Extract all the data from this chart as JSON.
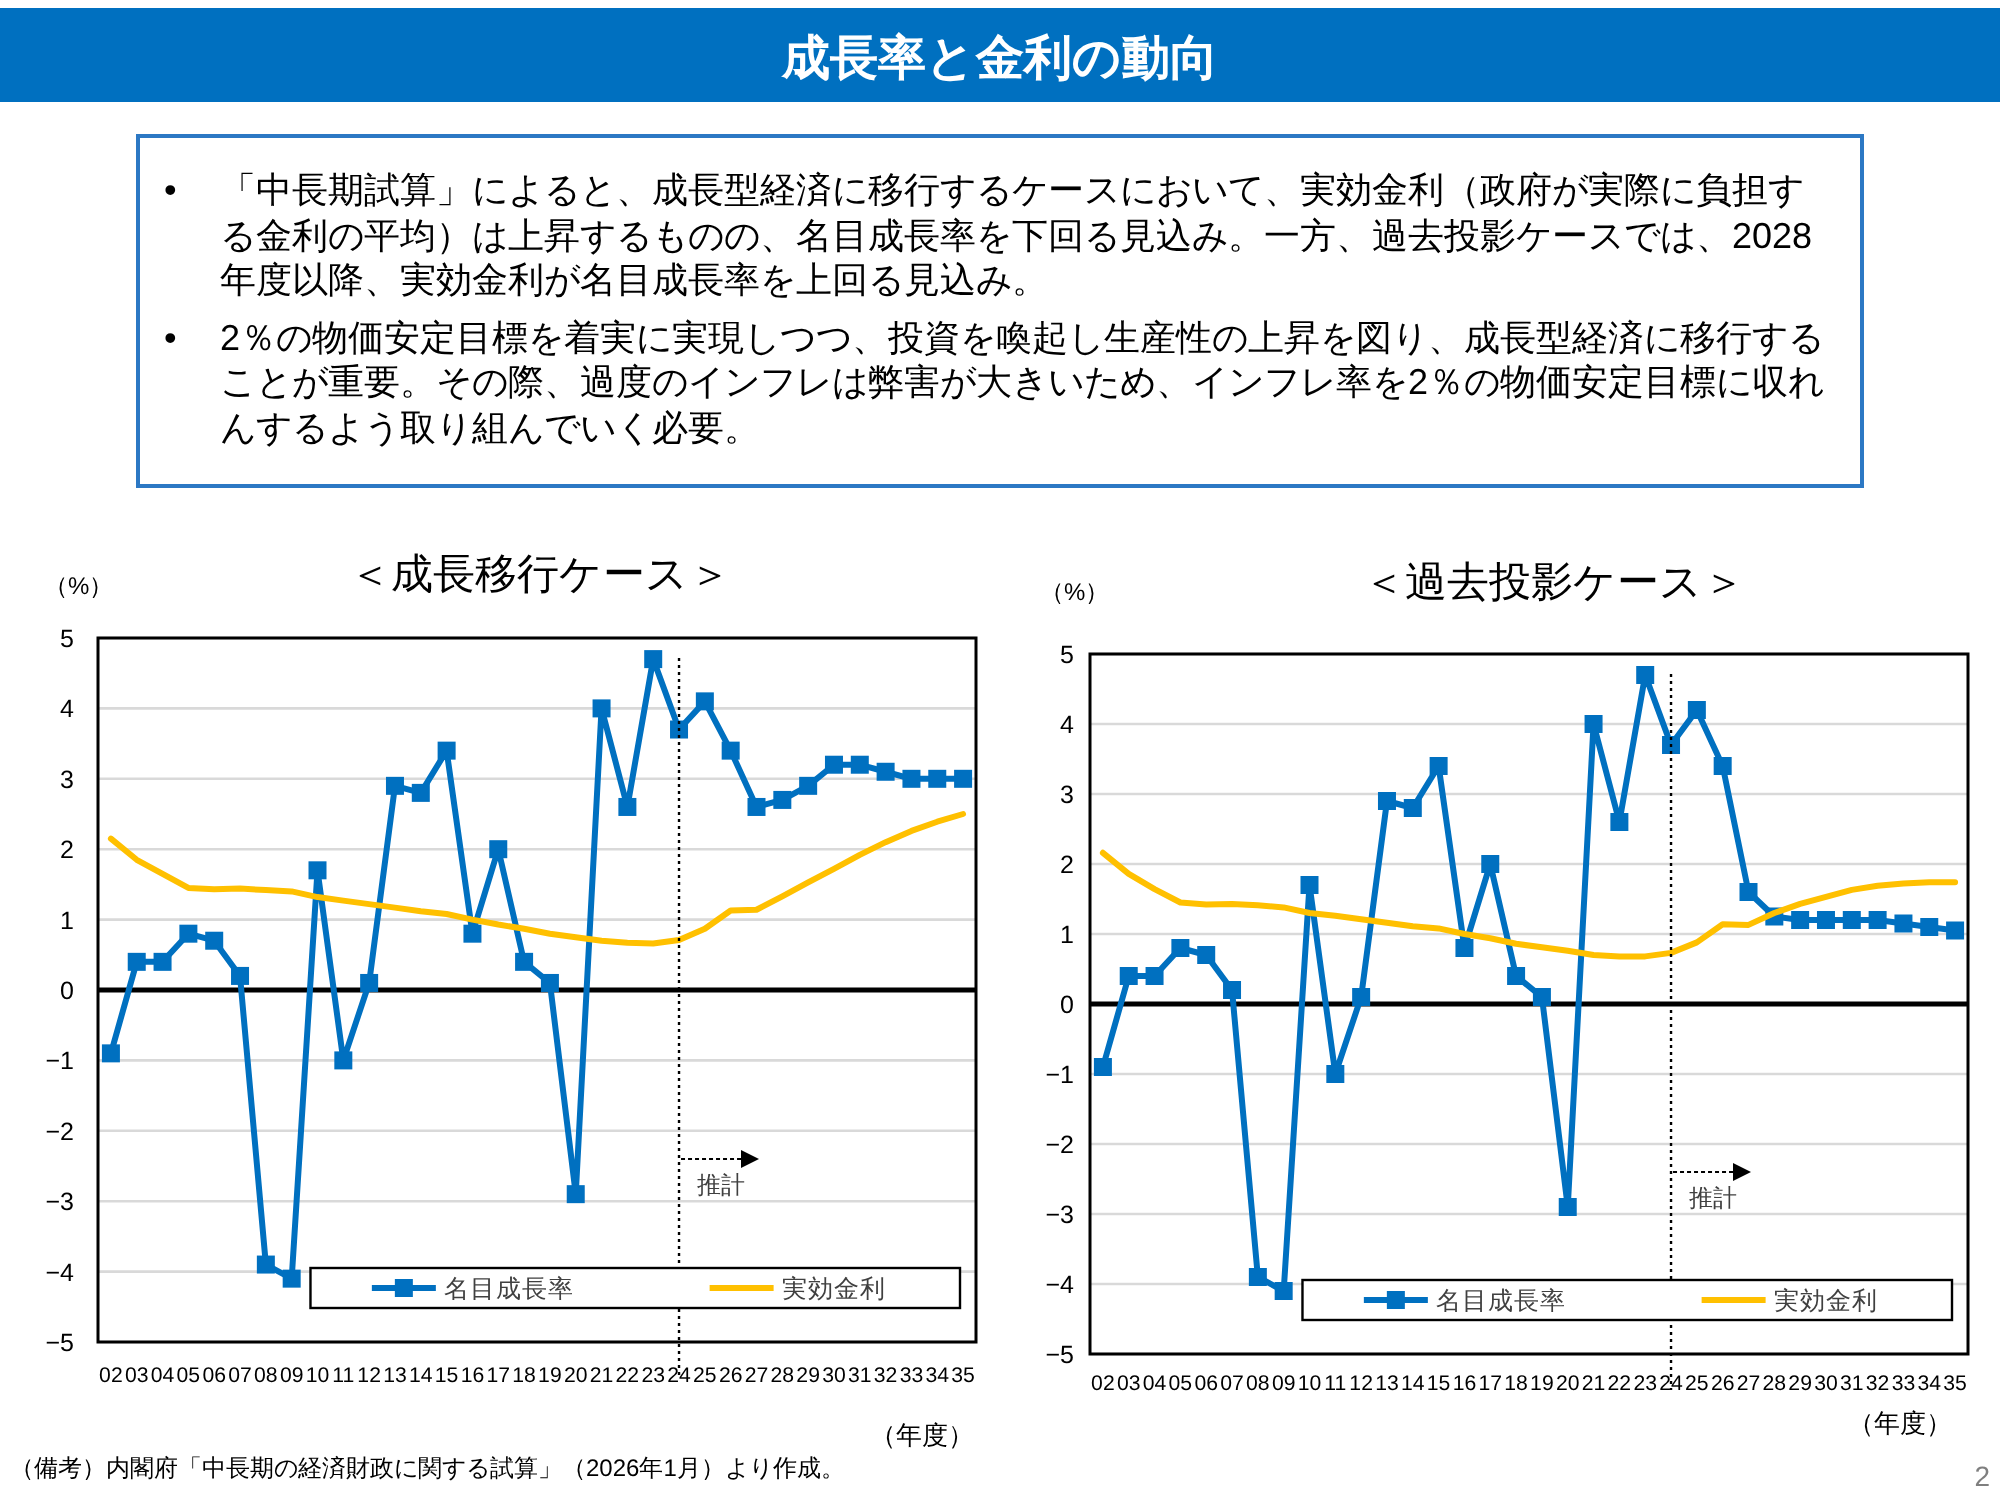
{
  "chart_data": [
    {
      "type": "other",
      "title": "成長率と金利の動向",
      "annotations": [
        "•",
        "「中長期試算」によると、成長型経済に移行するケースにおいて、実効金利（政府が実際に負担する金利の平均）は上昇するものの、名目成長率を下回る見込み。一方、過去投影ケースでは、2028年度以降、実効金利が名目成長率を上回る見込み。",
        "•",
        "2％の物価安定目標を着実に実現しつつ、投資を喚起し生産性の上昇を図り、成長型経済に移行することが重要。その際、過度のインフレは弊害が大きいため、インフレ率を2％の物価安定目標に収れんするよう取り組んでいく必要。",
        "（備考）内閣府「中長期の経済財政に関する試算」（2026年1月）より作成。",
        "2"
      ]
    },
    {
      "type": "line",
      "title": "＜成長移行ケース＞",
      "ylabel": "（%）",
      "xlabel": "（年度）",
      "categories": [
        "02",
        "03",
        "04",
        "05",
        "06",
        "07",
        "08",
        "09",
        "10",
        "11",
        "12",
        "13",
        "14",
        "15",
        "16",
        "17",
        "18",
        "19",
        "20",
        "21",
        "22",
        "23",
        "24",
        "25",
        "26",
        "27",
        "28",
        "29",
        "30",
        "31",
        "32",
        "33",
        "34",
        "35"
      ],
      "ylim": [
        -5,
        5
      ],
      "yticks": [
        -5,
        -4,
        -3,
        -2,
        -1,
        0,
        1,
        2,
        3,
        4,
        5
      ],
      "grid": "y",
      "legend": "bottom",
      "ref_lines": [
        {
          "axis": "y",
          "value": 0,
          "color": "#000000"
        },
        {
          "axis": "x",
          "value": "24",
          "label": "推計",
          "color": "#000000",
          "line_style": "dotted"
        }
      ],
      "series": [
        {
          "name": "名目成長率",
          "color": "#0070c0",
          "marker": "square",
          "values": [
            -0.9,
            0.4,
            0.4,
            0.8,
            0.7,
            0.2,
            -3.9,
            -4.1,
            1.7,
            -1.0,
            0.1,
            2.9,
            2.8,
            3.4,
            0.8,
            2.0,
            0.4,
            0.1,
            -2.9,
            4.0,
            2.6,
            4.7,
            3.7,
            4.1,
            3.4,
            2.6,
            2.7,
            2.9,
            3.2,
            3.2,
            3.1,
            3.0,
            3.0,
            3.0
          ]
        },
        {
          "name": "実効金利",
          "color": "#ffc000",
          "values": [
            2.15,
            1.85,
            1.65,
            1.45,
            1.43,
            1.44,
            1.42,
            1.4,
            1.32,
            1.27,
            1.22,
            1.17,
            1.12,
            1.08,
            1.0,
            0.93,
            0.87,
            0.8,
            0.75,
            0.7,
            0.67,
            0.66,
            0.71,
            0.87,
            1.13,
            1.14,
            1.33,
            1.53,
            1.72,
            1.92,
            2.1,
            2.26,
            2.39,
            2.5
          ]
        }
      ]
    },
    {
      "type": "line",
      "title": "＜過去投影ケース＞",
      "ylabel": "（%）",
      "xlabel": "（年度）",
      "categories": [
        "02",
        "03",
        "04",
        "05",
        "06",
        "07",
        "08",
        "09",
        "10",
        "11",
        "12",
        "13",
        "14",
        "15",
        "16",
        "17",
        "18",
        "19",
        "20",
        "21",
        "22",
        "23",
        "24",
        "25",
        "26",
        "27",
        "28",
        "29",
        "30",
        "31",
        "32",
        "33",
        "34",
        "35"
      ],
      "ylim": [
        -5,
        5
      ],
      "yticks": [
        -5,
        -4,
        -3,
        -2,
        -1,
        0,
        1,
        2,
        3,
        4,
        5
      ],
      "grid": "y",
      "legend": "bottom",
      "ref_lines": [
        {
          "axis": "y",
          "value": 0,
          "color": "#000000"
        },
        {
          "axis": "x",
          "value": "24",
          "label": "推計",
          "color": "#000000",
          "line_style": "dotted"
        }
      ],
      "series": [
        {
          "name": "名目成長率",
          "color": "#0070c0",
          "marker": "square",
          "values": [
            -0.9,
            0.4,
            0.4,
            0.8,
            0.7,
            0.2,
            -3.9,
            -4.1,
            1.7,
            -1.0,
            0.1,
            2.9,
            2.8,
            3.4,
            0.8,
            2.0,
            0.4,
            0.1,
            -2.9,
            4.0,
            2.6,
            4.7,
            3.7,
            4.2,
            3.4,
            1.6,
            1.25,
            1.2,
            1.2,
            1.2,
            1.2,
            1.15,
            1.1,
            1.05
          ]
        },
        {
          "name": "実効金利",
          "color": "#ffc000",
          "values": [
            2.16,
            1.86,
            1.64,
            1.45,
            1.42,
            1.43,
            1.41,
            1.38,
            1.3,
            1.26,
            1.21,
            1.16,
            1.11,
            1.08,
            1.0,
            0.94,
            0.86,
            0.81,
            0.76,
            0.7,
            0.68,
            0.68,
            0.73,
            0.88,
            1.14,
            1.13,
            1.3,
            1.43,
            1.53,
            1.63,
            1.69,
            1.72,
            1.74,
            1.74
          ]
        }
      ]
    }
  ]
}
